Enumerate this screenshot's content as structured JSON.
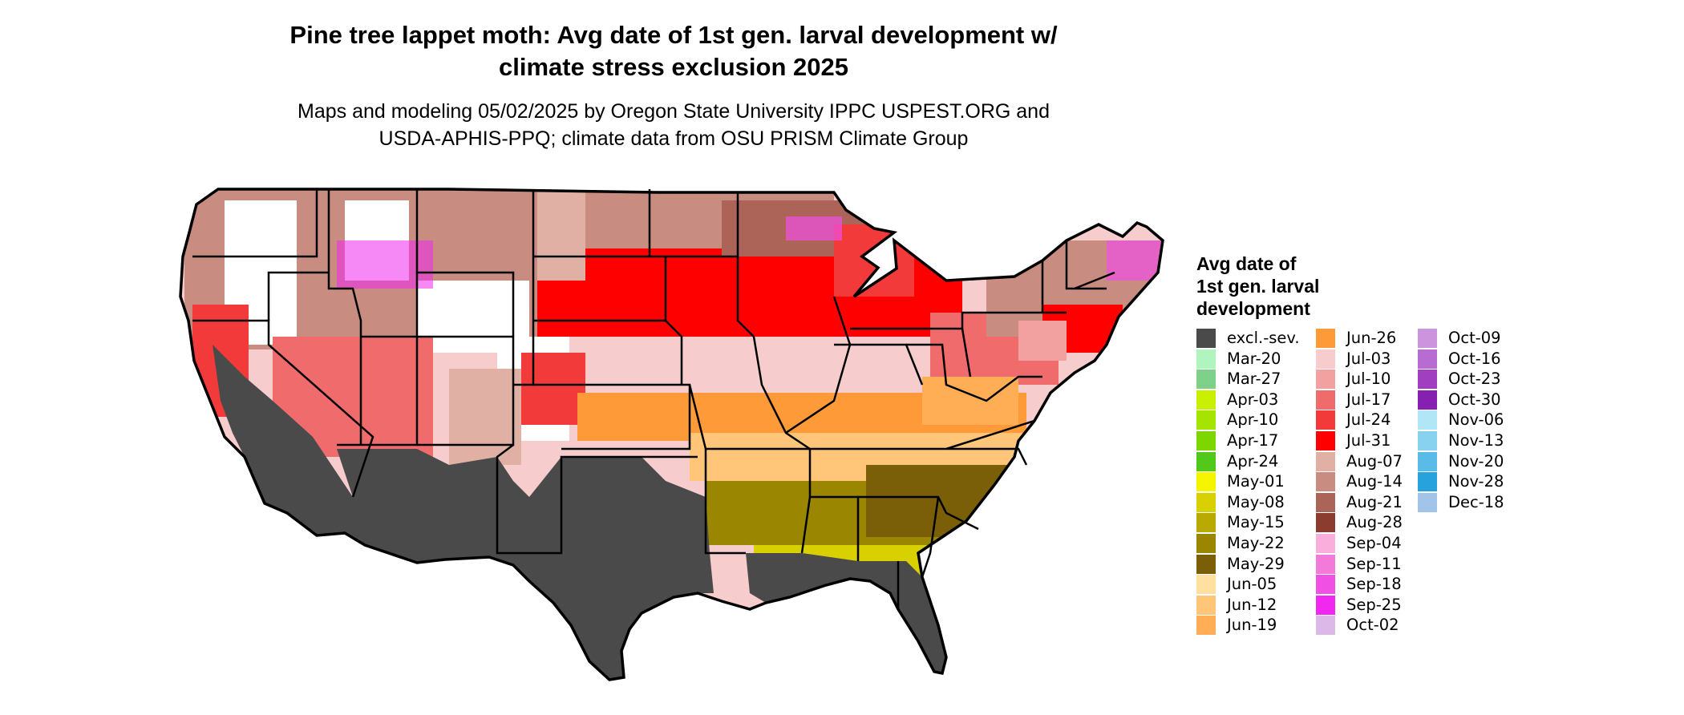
{
  "title": {
    "line1": "Pine tree lappet moth: Avg date of 1st gen. larval development w/",
    "line2": "climate stress exclusion 2025"
  },
  "subtitle": {
    "line1": "Maps and modeling 05/02/2025 by Oregon State University IPPC USPEST.ORG and",
    "line2": "USDA-APHIS-PPQ; climate data from OSU PRISM Climate Group"
  },
  "legend": {
    "title_line1": "Avg date of",
    "title_line2": "1st gen. larval",
    "title_line3": "development",
    "columns": [
      [
        {
          "label": "excl.-sev.",
          "color": "#4a4a4a"
        },
        {
          "label": "Mar-20",
          "color": "#b0f5c0"
        },
        {
          "label": "Mar-27",
          "color": "#7fd18a"
        },
        {
          "label": "Apr-03",
          "color": "#c8f000"
        },
        {
          "label": "Apr-10",
          "color": "#a4e400"
        },
        {
          "label": "Apr-17",
          "color": "#7ed600"
        },
        {
          "label": "Apr-24",
          "color": "#52c81a"
        },
        {
          "label": "May-01",
          "color": "#f5f500"
        },
        {
          "label": "May-08",
          "color": "#d8d000"
        },
        {
          "label": "May-15",
          "color": "#b8aa00"
        },
        {
          "label": "May-22",
          "color": "#9a8600"
        },
        {
          "label": "May-29",
          "color": "#7a5e08"
        },
        {
          "label": "Jun-05",
          "color": "#ffe0a0"
        },
        {
          "label": "Jun-12",
          "color": "#ffc67a"
        },
        {
          "label": "Jun-19",
          "color": "#ffae56"
        }
      ],
      [
        {
          "label": "Jun-26",
          "color": "#ff9a38"
        },
        {
          "label": "Jul-03",
          "color": "#f6cccc"
        },
        {
          "label": "Jul-10",
          "color": "#f3a0a0"
        },
        {
          "label": "Jul-17",
          "color": "#f06c6c"
        },
        {
          "label": "Jul-24",
          "color": "#f23a3a"
        },
        {
          "label": "Jul-31",
          "color": "#ff0000"
        },
        {
          "label": "Aug-07",
          "color": "#e0b0a4"
        },
        {
          "label": "Aug-14",
          "color": "#c88c80"
        },
        {
          "label": "Aug-21",
          "color": "#ad6458"
        },
        {
          "label": "Aug-28",
          "color": "#8c3c2e"
        },
        {
          "label": "Sep-04",
          "color": "#f9aedc"
        },
        {
          "label": "Sep-11",
          "color": "#f37ad8"
        },
        {
          "label": "Sep-18",
          "color": "#f050e4"
        },
        {
          "label": "Sep-25",
          "color": "#f028f0"
        },
        {
          "label": "Oct-02",
          "color": "#dcb8e8"
        }
      ],
      [
        {
          "label": "Oct-09",
          "color": "#cc94dc"
        },
        {
          "label": "Oct-16",
          "color": "#b66cd0"
        },
        {
          "label": "Oct-23",
          "color": "#a040c0"
        },
        {
          "label": "Oct-30",
          "color": "#8620b0"
        },
        {
          "label": "Nov-06",
          "color": "#b0e6f6"
        },
        {
          "label": "Nov-13",
          "color": "#88d2f0"
        },
        {
          "label": "Nov-20",
          "color": "#5abbe8"
        },
        {
          "label": "Nov-28",
          "color": "#28a2dc"
        },
        {
          "label": "Dec-18",
          "color": "#a2c4e8"
        }
      ]
    ]
  }
}
